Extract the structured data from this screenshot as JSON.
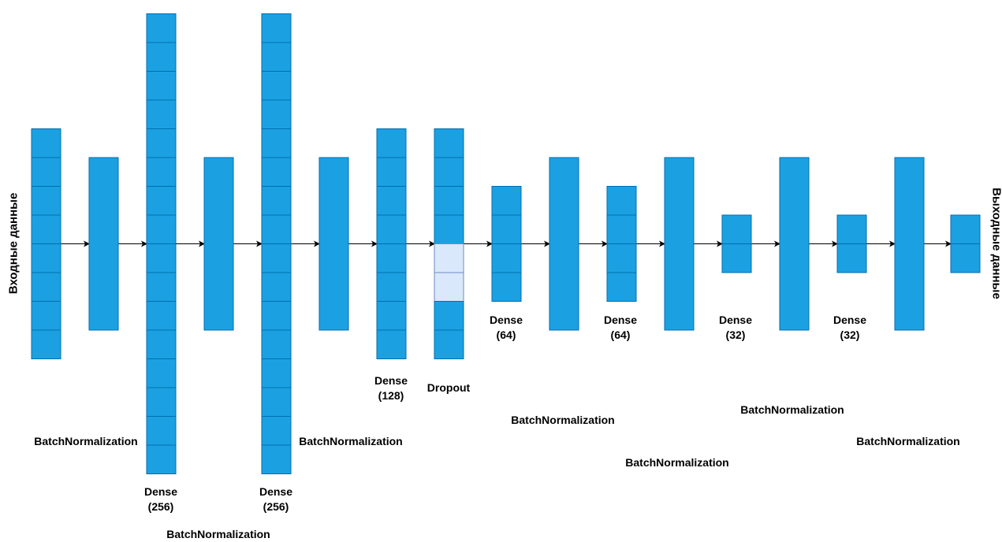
{
  "input_label": "Входные данные",
  "output_label": "Выходные данные",
  "colors": {
    "cell_fill": "#1ba1e2",
    "cell_stroke": "#006eaf",
    "dropout_fill": "#dae8fc",
    "dropout_stroke": "#6c8ebf",
    "arrow": "#000000"
  },
  "layers": [
    {
      "kind": "input",
      "cells": 8,
      "label": []
    },
    {
      "kind": "batchnorm",
      "cells": 1,
      "label": [
        "BatchNormalization"
      ]
    },
    {
      "kind": "dense",
      "cells": 16,
      "label": [
        "Dense",
        "(256)"
      ]
    },
    {
      "kind": "batchnorm",
      "cells": 1,
      "label": [
        "BatchNormalization"
      ]
    },
    {
      "kind": "dense",
      "cells": 16,
      "label": [
        "Dense",
        "(256)"
      ]
    },
    {
      "kind": "batchnorm",
      "cells": 1,
      "label": [
        "BatchNormalization"
      ]
    },
    {
      "kind": "dense",
      "cells": 8,
      "label": [
        "Dense",
        "(128)"
      ]
    },
    {
      "kind": "dropout",
      "cells": 8,
      "dropped": [
        4,
        5
      ],
      "label": [
        "Dropout"
      ]
    },
    {
      "kind": "dense",
      "cells": 4,
      "label": [
        "Dense",
        "(64)"
      ]
    },
    {
      "kind": "batchnorm",
      "cells": 1,
      "label": [
        "BatchNormalization"
      ]
    },
    {
      "kind": "dense",
      "cells": 4,
      "label": [
        "Dense",
        "(64)"
      ]
    },
    {
      "kind": "batchnorm",
      "cells": 1,
      "label": [
        "BatchNormalization"
      ]
    },
    {
      "kind": "dense",
      "cells": 2,
      "label": [
        "Dense",
        "(32)"
      ]
    },
    {
      "kind": "batchnorm",
      "cells": 1,
      "label": [
        "BatchNormalization"
      ]
    },
    {
      "kind": "dense",
      "cells": 2,
      "label": [
        "Dense",
        "(32)"
      ]
    },
    {
      "kind": "batchnorm",
      "cells": 1,
      "label": [
        "BatchNormalization"
      ]
    },
    {
      "kind": "output",
      "cells": 2,
      "label": []
    }
  ]
}
